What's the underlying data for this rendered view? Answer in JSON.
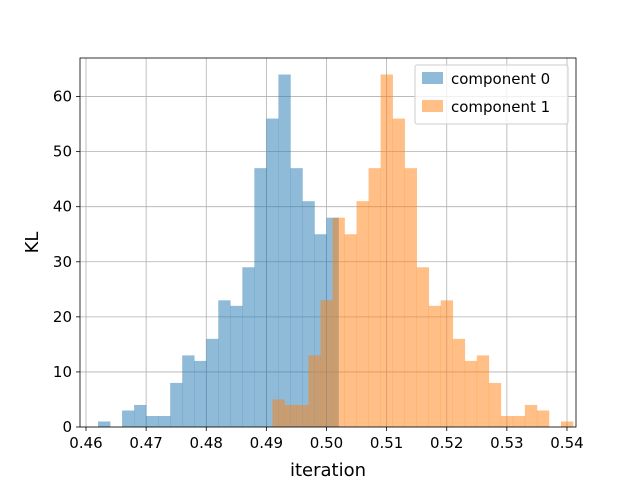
{
  "chart_data": {
    "type": "histogram",
    "xlabel": "iteration",
    "ylabel": "KL",
    "xlim": [
      0.459,
      0.5415
    ],
    "ylim": [
      0,
      67
    ],
    "xticks": [
      0.46,
      0.47,
      0.48,
      0.49,
      0.5,
      0.51,
      0.52,
      0.53,
      0.54
    ],
    "xtick_labels": [
      "0.46",
      "0.47",
      "0.48",
      "0.49",
      "0.50",
      "0.51",
      "0.52",
      "0.53",
      "0.54"
    ],
    "yticks": [
      0,
      10,
      20,
      30,
      40,
      50,
      60
    ],
    "ytick_labels": [
      "0",
      "10",
      "20",
      "30",
      "40",
      "50",
      "60"
    ],
    "grid": true,
    "legend_position": "top-right",
    "series": [
      {
        "name": "component 0",
        "color": "#1f77b4",
        "alpha": 0.5,
        "bin_start": 0.462,
        "bin_width": 0.002,
        "counts": [
          1,
          0,
          3,
          4,
          2,
          2,
          8,
          13,
          12,
          16,
          23,
          22,
          29,
          47,
          56,
          64,
          47,
          41,
          35,
          38
        ]
      },
      {
        "name": "component 1",
        "color": "#ff7f0e",
        "alpha": 0.5,
        "bin_start": 0.491,
        "bin_width": 0.002,
        "counts": [
          5,
          4,
          4,
          13,
          23,
          38,
          35,
          41,
          47,
          64,
          56,
          47,
          29,
          22,
          23,
          16,
          12,
          13,
          8,
          2,
          2,
          4,
          3,
          0,
          1
        ]
      }
    ]
  }
}
